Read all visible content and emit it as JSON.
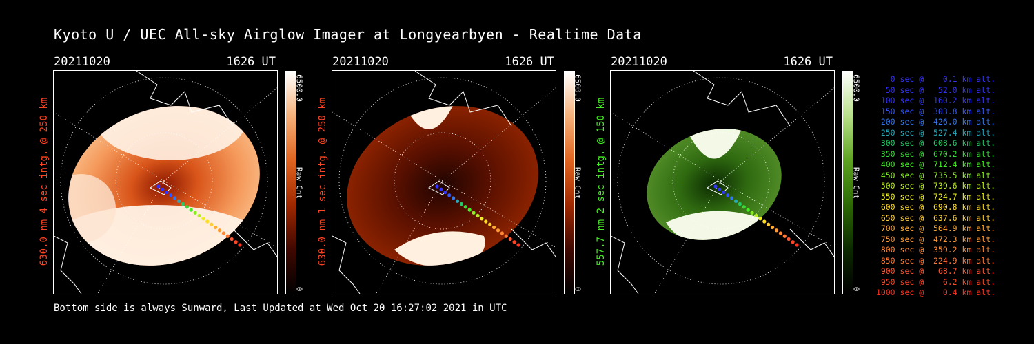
{
  "title": "Kyoto U / UEC All-sky Airglow Imager at Longyearbyen - Realtime Data",
  "footer": "Bottom side is always Sunward, Last Updated at Wed Oct 20 16:27:02 2021 in UTC",
  "panels": [
    {
      "date": "20211020",
      "time": "1626 UT",
      "ylabel": "630.0 nm 4 sec intg. @ 250 km",
      "cbar_max": "6500.0",
      "cbar_min": "0",
      "cbar_label": "Raw Cnt",
      "color": "#ff4422"
    },
    {
      "date": "20211020",
      "time": "1626 UT",
      "ylabel": "630.0 nm 1 sec intg. @ 250 km",
      "cbar_max": "6500.0",
      "cbar_min": "0",
      "cbar_label": "Raw Cnt",
      "color": "#ff4422"
    },
    {
      "date": "20211020",
      "time": "1626 UT",
      "ylabel": "557.7 nm 2 sec intg. @ 150 km",
      "cbar_max": "6500.0",
      "cbar_min": "0",
      "cbar_label": "Raw Cnt",
      "color": "#44ee22"
    }
  ],
  "legend": [
    {
      "text": "   0 sec @    0.1 km alt.",
      "color": "#3333ff"
    },
    {
      "text": "  50 sec @   52.0 km alt.",
      "color": "#3333ff"
    },
    {
      "text": " 100 sec @  160.2 km alt.",
      "color": "#3333ff"
    },
    {
      "text": " 150 sec @  303.8 km alt.",
      "color": "#3355ff"
    },
    {
      "text": " 200 sec @  426.0 km alt.",
      "color": "#3377ee"
    },
    {
      "text": " 250 sec @  527.4 km alt.",
      "color": "#22aabb"
    },
    {
      "text": " 300 sec @  608.6 km alt.",
      "color": "#22cc66"
    },
    {
      "text": " 350 sec @  670.2 km alt.",
      "color": "#33dd33"
    },
    {
      "text": " 400 sec @  712.4 km alt.",
      "color": "#44ee22"
    },
    {
      "text": " 450 sec @  735.5 km alt.",
      "color": "#88ee22"
    },
    {
      "text": " 500 sec @  739.6 km alt.",
      "color": "#bbee22"
    },
    {
      "text": " 550 sec @  724.7 km alt.",
      "color": "#eeee22"
    },
    {
      "text": " 600 sec @  690.8 km alt.",
      "color": "#ffdd22"
    },
    {
      "text": " 650 sec @  637.6 km alt.",
      "color": "#ffcc33"
    },
    {
      "text": " 700 sec @  564.9 km alt.",
      "color": "#ffaa33"
    },
    {
      "text": " 750 sec @  472.3 km alt.",
      "color": "#ff9933"
    },
    {
      "text": " 800 sec @  359.2 km alt.",
      "color": "#ff8833"
    },
    {
      "text": " 850 sec @  224.9 km alt.",
      "color": "#ff7733"
    },
    {
      "text": " 900 sec @   68.7 km alt.",
      "color": "#ff5533"
    },
    {
      "text": " 950 sec @    6.2 km alt.",
      "color": "#ff4422"
    },
    {
      "text": "1000 sec @    0.4 km alt.",
      "color": "#ff3322"
    }
  ]
}
